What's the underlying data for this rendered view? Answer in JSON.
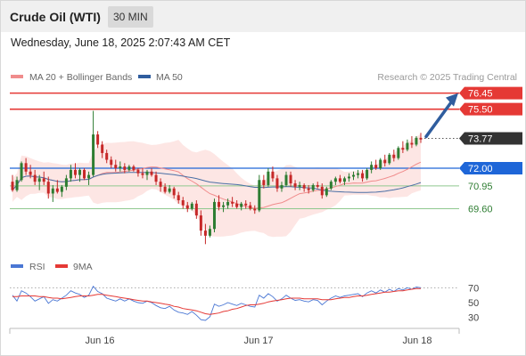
{
  "header": {
    "title": "Crude Oil (WTI)",
    "interval": "30 MIN"
  },
  "datetime": "Wednesday, June 18, 2025 2:07:43 AM CET",
  "legend": {
    "ma20": "MA 20 + Bollinger Bands",
    "ma50": "MA 50",
    "credit": "Research © 2025 Trading Central"
  },
  "rsi_legend": {
    "rsi": "RSI",
    "ma9": "9MA"
  },
  "colors": {
    "bull": "#2e7d32",
    "bear": "#c62828",
    "resistance": "#e53935",
    "support_blue": "#1e66d8",
    "support_green": "#8fc88f",
    "ma20": "#f08c8c",
    "ma50": "#4a6fa5",
    "band": "#fde3e1",
    "arrow": "#2f5d9e",
    "rsi": "#4a77d4",
    "rsi_ma": "#e53935"
  },
  "chart_data": {
    "type": "candlestick",
    "y_range": [
      67.2,
      76.8
    ],
    "x_ticks": [
      "Jun 16",
      "Jun 17",
      "Jun 18"
    ],
    "levels": [
      {
        "label": "76.45",
        "value": 76.45,
        "kind": "resistance"
      },
      {
        "label": "75.50",
        "value": 75.5,
        "kind": "resistance"
      },
      {
        "label": "73.77",
        "value": 73.77,
        "kind": "last"
      },
      {
        "label": "72.00",
        "value": 72.0,
        "kind": "pivot"
      },
      {
        "label": "70.95",
        "value": 70.95,
        "kind": "support"
      },
      {
        "label": "69.60",
        "value": 69.6,
        "kind": "support"
      }
    ],
    "candles": [
      [
        71.2,
        71.6,
        70.6,
        70.7
      ],
      [
        70.7,
        71.5,
        70.6,
        71.3
      ],
      [
        71.3,
        72.4,
        71.2,
        72.3
      ],
      [
        72.3,
        72.6,
        71.6,
        71.8
      ],
      [
        71.8,
        72.2,
        71.4,
        71.6
      ],
      [
        71.6,
        71.9,
        71.0,
        71.2
      ],
      [
        71.2,
        71.6,
        70.7,
        71.4
      ],
      [
        71.4,
        71.8,
        71.0,
        71.2
      ],
      [
        71.2,
        71.5,
        70.2,
        70.5
      ],
      [
        70.5,
        71.0,
        70.0,
        70.8
      ],
      [
        70.8,
        71.3,
        70.5,
        70.6
      ],
      [
        70.6,
        71.0,
        70.3,
        70.9
      ],
      [
        70.9,
        71.6,
        70.7,
        71.4
      ],
      [
        71.4,
        72.2,
        71.2,
        71.9
      ],
      [
        71.9,
        72.3,
        71.4,
        71.6
      ],
      [
        71.6,
        72.0,
        71.2,
        71.9
      ],
      [
        71.9,
        72.0,
        71.3,
        71.4
      ],
      [
        71.4,
        71.8,
        71.0,
        71.6
      ],
      [
        71.6,
        75.4,
        71.5,
        74.0
      ],
      [
        74.0,
        74.2,
        73.2,
        73.4
      ],
      [
        73.4,
        73.6,
        72.6,
        72.9
      ],
      [
        72.9,
        73.1,
        72.3,
        72.5
      ],
      [
        72.5,
        72.7,
        72.0,
        72.2
      ],
      [
        72.2,
        72.5,
        71.8,
        72.0
      ],
      [
        72.0,
        72.4,
        71.8,
        72.1
      ],
      [
        72.1,
        72.3,
        71.7,
        71.9
      ],
      [
        71.9,
        72.2,
        71.8,
        72.1
      ],
      [
        72.1,
        72.2,
        71.8,
        71.9
      ],
      [
        71.9,
        72.0,
        71.5,
        71.7
      ],
      [
        71.7,
        72.0,
        71.4,
        71.6
      ],
      [
        71.6,
        71.9,
        71.3,
        71.8
      ],
      [
        71.8,
        72.0,
        71.5,
        71.6
      ],
      [
        71.6,
        71.8,
        71.0,
        71.2
      ],
      [
        71.2,
        71.4,
        70.6,
        70.9
      ],
      [
        70.9,
        71.1,
        70.5,
        70.6
      ],
      [
        70.6,
        71.0,
        70.5,
        70.8
      ],
      [
        70.8,
        70.9,
        70.2,
        70.4
      ],
      [
        70.4,
        70.6,
        69.9,
        70.1
      ],
      [
        70.1,
        70.3,
        69.6,
        69.8
      ],
      [
        69.8,
        70.0,
        69.4,
        69.6
      ],
      [
        69.6,
        70.0,
        69.5,
        69.9
      ],
      [
        69.9,
        70.1,
        69.0,
        69.2
      ],
      [
        69.2,
        69.5,
        68.0,
        68.3
      ],
      [
        68.3,
        68.7,
        67.5,
        68.0
      ],
      [
        68.0,
        68.6,
        67.9,
        68.4
      ],
      [
        68.4,
        70.2,
        68.2,
        70.0
      ],
      [
        70.0,
        70.4,
        69.5,
        69.7
      ],
      [
        69.7,
        70.0,
        69.4,
        69.8
      ],
      [
        69.8,
        70.2,
        69.6,
        70.0
      ],
      [
        70.0,
        70.3,
        69.7,
        69.9
      ],
      [
        69.9,
        70.1,
        69.6,
        69.7
      ],
      [
        69.7,
        70.0,
        69.5,
        69.9
      ],
      [
        69.9,
        70.1,
        69.6,
        69.8
      ],
      [
        69.8,
        70.0,
        69.5,
        69.6
      ],
      [
        69.6,
        69.8,
        69.3,
        69.5
      ],
      [
        69.5,
        71.6,
        69.4,
        71.3
      ],
      [
        71.3,
        71.6,
        70.8,
        71.0
      ],
      [
        71.0,
        72.0,
        70.9,
        71.8
      ],
      [
        71.8,
        72.1,
        71.2,
        71.4
      ],
      [
        71.4,
        71.6,
        70.6,
        70.8
      ],
      [
        70.8,
        71.2,
        70.6,
        71.0
      ],
      [
        71.0,
        71.8,
        70.9,
        71.6
      ],
      [
        71.6,
        71.8,
        70.9,
        71.1
      ],
      [
        71.1,
        71.3,
        70.7,
        70.9
      ],
      [
        70.9,
        71.2,
        70.7,
        71.0
      ],
      [
        71.0,
        71.1,
        70.6,
        70.8
      ],
      [
        70.8,
        71.0,
        70.5,
        70.7
      ],
      [
        70.7,
        71.1,
        70.6,
        71.0
      ],
      [
        71.0,
        71.2,
        70.8,
        70.9
      ],
      [
        70.9,
        71.1,
        70.2,
        70.4
      ],
      [
        70.4,
        70.9,
        70.3,
        70.8
      ],
      [
        70.8,
        71.3,
        70.7,
        71.2
      ],
      [
        71.2,
        71.5,
        71.0,
        71.4
      ],
      [
        71.4,
        71.6,
        71.1,
        71.2
      ],
      [
        71.2,
        71.5,
        71.0,
        71.4
      ],
      [
        71.4,
        71.7,
        71.2,
        71.5
      ],
      [
        71.5,
        71.8,
        71.3,
        71.6
      ],
      [
        71.6,
        71.9,
        71.4,
        71.7
      ],
      [
        71.7,
        71.9,
        71.2,
        71.4
      ],
      [
        71.4,
        72.0,
        71.3,
        71.9
      ],
      [
        71.9,
        72.4,
        71.7,
        72.2
      ],
      [
        72.2,
        72.5,
        71.9,
        72.0
      ],
      [
        72.0,
        72.6,
        71.9,
        72.5
      ],
      [
        72.5,
        72.8,
        72.1,
        72.3
      ],
      [
        72.3,
        72.9,
        72.2,
        72.8
      ],
      [
        72.8,
        73.1,
        72.4,
        72.6
      ],
      [
        72.6,
        73.3,
        72.5,
        73.2
      ],
      [
        73.2,
        73.6,
        72.9,
        73.1
      ],
      [
        73.1,
        73.7,
        73.0,
        73.5
      ],
      [
        73.5,
        73.9,
        73.2,
        73.4
      ],
      [
        73.4,
        73.9,
        73.3,
        73.8
      ],
      [
        73.8,
        74.1,
        73.5,
        73.7
      ]
    ],
    "rsi": {
      "y_ticks": [
        70,
        50,
        30
      ],
      "values": [
        60,
        52,
        66,
        63,
        58,
        52,
        55,
        58,
        49,
        54,
        52,
        56,
        60,
        66,
        63,
        61,
        57,
        60,
        72,
        65,
        62,
        56,
        54,
        52,
        55,
        52,
        55,
        52,
        50,
        49,
        52,
        50,
        46,
        43,
        42,
        45,
        40,
        37,
        36,
        34,
        38,
        33,
        27,
        26,
        31,
        48,
        45,
        47,
        50,
        48,
        46,
        49,
        47,
        45,
        44,
        60,
        56,
        62,
        58,
        52,
        55,
        60,
        56,
        53,
        54,
        52,
        51,
        54,
        53,
        47,
        52,
        56,
        59,
        57,
        59,
        60,
        61,
        62,
        58,
        63,
        66,
        63,
        67,
        64,
        68,
        65,
        69,
        67,
        70,
        68,
        71,
        70
      ],
      "ma": [
        58,
        58,
        59,
        59,
        59,
        59,
        58,
        58,
        57,
        56,
        56,
        55,
        56,
        57,
        58,
        59,
        59,
        59,
        60,
        61,
        61,
        60,
        59,
        58,
        57,
        56,
        55,
        54,
        53,
        52,
        52,
        51,
        50,
        49,
        48,
        47,
        45,
        44,
        42,
        41,
        40,
        39,
        37,
        35,
        34,
        35,
        36,
        38,
        39,
        41,
        42,
        44,
        46,
        47,
        47,
        48,
        49,
        51,
        52,
        53,
        54,
        55,
        56,
        56,
        56,
        55,
        55,
        55,
        55,
        54,
        54,
        54,
        55,
        56,
        57,
        57,
        58,
        59,
        59,
        60,
        61,
        62,
        63,
        64,
        64,
        65,
        66,
        66,
        67,
        68,
        69,
        69
      ]
    }
  }
}
